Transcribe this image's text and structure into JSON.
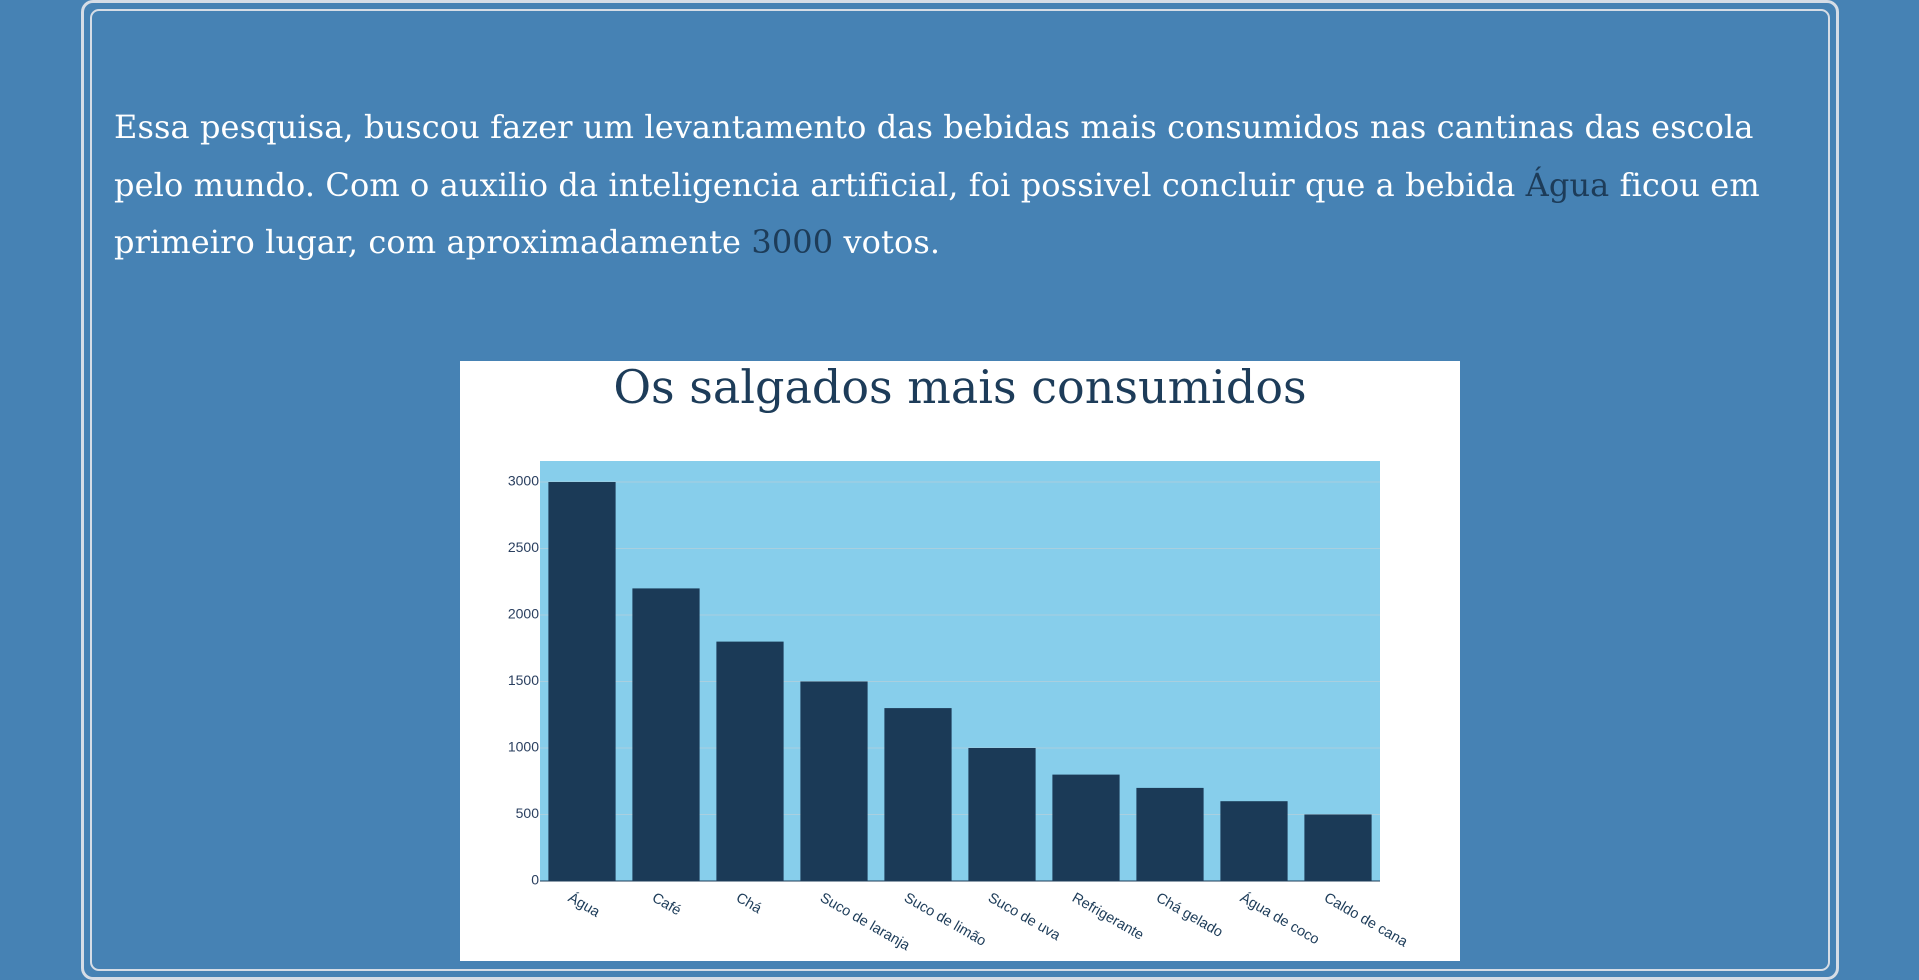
{
  "intro": {
    "text_before": "Essa pesquisa, buscou fazer um levantamento das bebidas mais consumidos nas cantinas das escola pelo mundo. Com o auxilio da inteligencia artificial, foi possivel concluir que a bebida ",
    "top_item": "Água",
    "text_middle": " ficou em primeiro lugar, com aproximadamente ",
    "top_value": "3000",
    "text_after": " votos."
  },
  "colors": {
    "page_background": "#4682b4",
    "plot_background": "#87ceeb",
    "bar": "#1b3a57",
    "accent_text": "#1d3c59"
  },
  "chart_data": {
    "type": "bar",
    "title": "Os salgados mais consumidos",
    "xlabel": "",
    "ylabel": "",
    "categories": [
      "Água",
      "Café",
      "Chá",
      "Suco de laranja",
      "Suco de limão",
      "Suco de uva",
      "Refrigerante",
      "Chá gelado",
      "Água de coco",
      "Caldo de cana"
    ],
    "values": [
      3000,
      2200,
      1800,
      1500,
      1300,
      1000,
      800,
      700,
      600,
      500
    ],
    "yticks": [
      0,
      500,
      1000,
      1500,
      2000,
      2500,
      3000
    ],
    "ylim": [
      0,
      3158
    ],
    "grid": true,
    "legend": "none"
  }
}
